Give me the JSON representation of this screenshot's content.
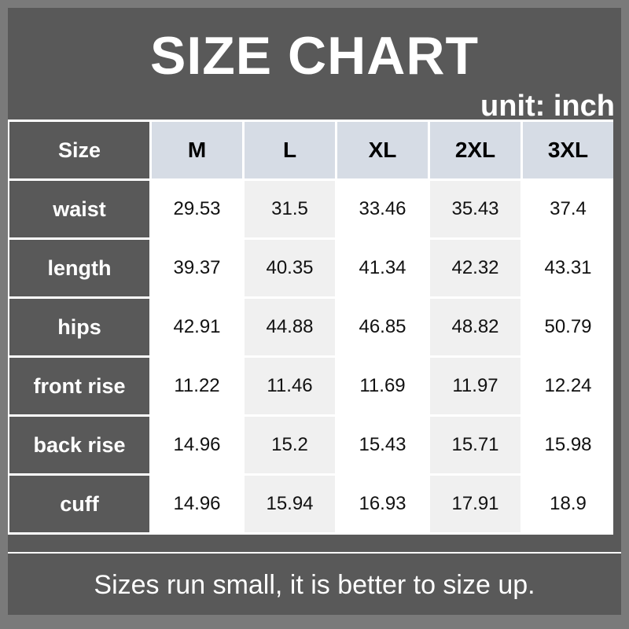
{
  "title": "SIZE CHART",
  "unit": "unit: inch",
  "header": {
    "label": "Size",
    "sizes": [
      "M",
      "L",
      "XL",
      "2XL",
      "3XL"
    ]
  },
  "rows": [
    {
      "label": "waist",
      "values": [
        "29.53",
        "31.5",
        "33.46",
        "35.43",
        "37.4"
      ]
    },
    {
      "label": "length",
      "values": [
        "39.37",
        "40.35",
        "41.34",
        "42.32",
        "43.31"
      ]
    },
    {
      "label": "hips",
      "values": [
        "42.91",
        "44.88",
        "46.85",
        "48.82",
        "50.79"
      ]
    },
    {
      "label": "front rise",
      "values": [
        "11.22",
        "11.46",
        "11.69",
        "11.97",
        "12.24"
      ]
    },
    {
      "label": "back rise",
      "values": [
        "14.96",
        "15.2",
        "15.43",
        "15.71",
        "15.98"
      ]
    },
    {
      "label": "cuff",
      "values": [
        "14.96",
        "15.94",
        "16.93",
        "17.91",
        "18.9"
      ]
    }
  ],
  "footer": "Sizes run small, it is better to size up.",
  "colors": {
    "frame": "#7a7a7a",
    "panel": "#595959",
    "header_cell": "#d6dce5",
    "alt_column": "#f0f0f0"
  }
}
